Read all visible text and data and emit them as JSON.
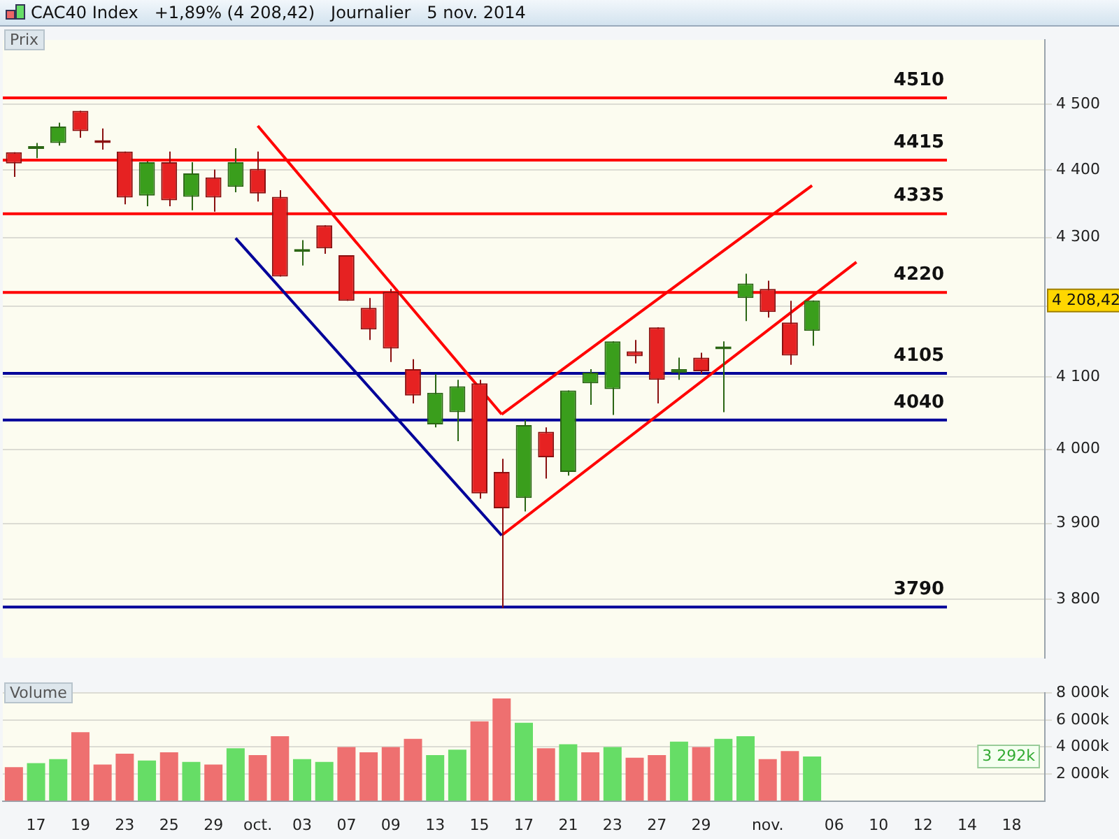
{
  "chart_data": [
    {
      "type": "candlestick",
      "title": "CAC40 Index   +1,89% (4 208,42)   Journalier   5 nov. 2014",
      "ylabel": "Prix",
      "log": true,
      "grid": "y",
      "tick_labels": "y",
      "categories": [
        null,
        null,
        null,
        null,
        null,
        null,
        null,
        null,
        null,
        null,
        null,
        null,
        null,
        null,
        null,
        null,
        null,
        null,
        null,
        null,
        null,
        null,
        null,
        null,
        null,
        null,
        null,
        null,
        null,
        null,
        null,
        null,
        null,
        null,
        null,
        null,
        null,
        null,
        null,
        null,
        null,
        null,
        null,
        null,
        null,
        null,
        null
      ],
      "ohlc": [
        [
          4427,
          4427,
          4390,
          4410
        ],
        [
          4432,
          4441,
          4418,
          4434
        ],
        [
          4441,
          4472,
          4437,
          4466
        ],
        [
          4490,
          4490,
          4449,
          4459
        ],
        [
          4445,
          4463,
          4431,
          4441
        ],
        [
          4428,
          4428,
          4349,
          4359
        ],
        [
          4362,
          4413,
          4346,
          4412
        ],
        [
          4412,
          4428,
          4346,
          4355
        ],
        [
          4360,
          4412,
          4340,
          4395
        ],
        [
          4389,
          4401,
          4338,
          4359
        ],
        [
          4375,
          4433,
          4367,
          4412
        ],
        [
          4402,
          4428,
          4353,
          4365
        ],
        [
          4360,
          4370,
          4243,
          4243
        ],
        [
          4279,
          4296,
          4259,
          4281
        ],
        [
          4318,
          4318,
          4276,
          4284
        ],
        [
          4274,
          4274,
          4208,
          4208
        ],
        [
          4198,
          4212,
          4152,
          4167
        ],
        [
          4221,
          4225,
          4121,
          4140
        ],
        [
          4111,
          4125,
          4063,
          4074
        ],
        [
          4034,
          4104,
          4030,
          4078
        ],
        [
          4051,
          4096,
          4011,
          4087
        ],
        [
          4091,
          4096,
          3933,
          3940
        ],
        [
          3969,
          3987,
          3789,
          3920
        ],
        [
          3934,
          4040,
          3916,
          4033
        ],
        [
          4024,
          4030,
          3960,
          3989
        ],
        [
          3969,
          4081,
          3964,
          4081
        ],
        [
          4091,
          4111,
          4061,
          4106
        ],
        [
          4083,
          4150,
          4047,
          4150
        ],
        [
          4136,
          4152,
          4119,
          4129
        ],
        [
          4170,
          4170,
          4063,
          4096
        ],
        [
          4106,
          4127,
          4096,
          4111
        ],
        [
          4127,
          4134,
          4104,
          4108
        ],
        [
          4139,
          4150,
          4051,
          4141
        ],
        [
          4212,
          4247,
          4179,
          4233
        ],
        [
          4225,
          4237,
          4184,
          4192
        ],
        [
          4177,
          4208,
          4117,
          4130
        ],
        [
          4165,
          4208.42,
          4144,
          4208.42
        ],
        null,
        null,
        null,
        null,
        null,
        null,
        null,
        null,
        null,
        null
      ],
      "series": [
        {
          "type": "line",
          "color": "#000099",
          "values": [
            null,
            null,
            null,
            null,
            null,
            null,
            null,
            null,
            null,
            null,
            4299,
            null,
            null,
            null,
            null,
            null,
            null,
            null,
            null,
            null,
            null,
            null,
            3884,
            null,
            null,
            null,
            null,
            null,
            null,
            null,
            null,
            null,
            null,
            null,
            null,
            null,
            null,
            null,
            null,
            null,
            null,
            null,
            null,
            null,
            null,
            null,
            null
          ]
        },
        {
          "type": "line",
          "color": "#ff0000",
          "values": [
            null,
            null,
            null,
            null,
            null,
            null,
            null,
            null,
            null,
            null,
            null,
            4467,
            null,
            null,
            null,
            null,
            null,
            null,
            null,
            null,
            null,
            null,
            4048,
            null,
            null,
            null,
            null,
            null,
            null,
            null,
            null,
            null,
            null,
            null,
            null,
            null,
            null,
            null,
            null,
            null,
            null,
            null,
            null,
            null,
            null,
            null,
            null
          ]
        },
        {
          "type": "line",
          "color": "#ff0000",
          "values": [
            null,
            null,
            null,
            null,
            null,
            null,
            null,
            null,
            null,
            null,
            null,
            null,
            null,
            null,
            null,
            null,
            null,
            null,
            null,
            null,
            null,
            null,
            4048,
            null,
            null,
            null,
            null,
            null,
            null,
            null,
            null,
            null,
            null,
            null,
            null,
            null,
            4377,
            null,
            null,
            null,
            null,
            null,
            null,
            null,
            null,
            null,
            null
          ]
        },
        {
          "type": "line",
          "color": "#ff0000",
          "values": [
            null,
            null,
            null,
            null,
            null,
            null,
            null,
            null,
            null,
            null,
            null,
            null,
            null,
            null,
            null,
            null,
            null,
            null,
            null,
            null,
            null,
            null,
            3884,
            null,
            null,
            null,
            null,
            null,
            null,
            null,
            null,
            null,
            null,
            null,
            null,
            null,
            null,
            null,
            4264,
            null,
            null,
            null,
            null,
            null,
            null,
            null,
            null
          ]
        }
      ],
      "ylim": [
        3725,
        4600
      ],
      "yticks": [
        {
          "value": 3800,
          "label": "3 800"
        },
        {
          "value": 3900,
          "label": "3 900"
        },
        {
          "value": 4000,
          "label": "4 000"
        },
        {
          "value": 4100,
          "label": "4 100"
        },
        {
          "value": 4200,
          "label": null
        },
        {
          "value": 4300,
          "label": "4 300"
        },
        {
          "value": 4400,
          "label": "4 400"
        },
        {
          "value": 4500,
          "label": "4 500"
        }
      ],
      "ref_lines": [
        {
          "axis": "y",
          "value": 4510,
          "label": "4510",
          "color": "#ff0000"
        },
        {
          "axis": "y",
          "value": 4415,
          "label": "4415",
          "color": "#ff0000"
        },
        {
          "axis": "y",
          "value": 4335,
          "label": "4335",
          "color": "#ff0000"
        },
        {
          "axis": "y",
          "value": 4220,
          "label": "4220",
          "color": "#ff0000"
        },
        {
          "axis": "y",
          "value": 4105,
          "label": "4105",
          "color": "#000099"
        },
        {
          "axis": "y",
          "value": 4040,
          "label": "4040",
          "color": "#000099"
        },
        {
          "axis": "y",
          "value": 3790,
          "label": "3790",
          "color": "#000099"
        }
      ],
      "annotations": [
        "4 208,42"
      ]
    },
    {
      "type": "bar",
      "ylabel": "Volume",
      "grid": "y",
      "categories": [
        null,
        "17",
        null,
        "19",
        null,
        "23",
        null,
        "25",
        null,
        "29",
        null,
        "oct.",
        null,
        "03",
        null,
        "07",
        null,
        "09",
        null,
        "13",
        null,
        "15",
        null,
        "17",
        null,
        "21",
        null,
        "23",
        null,
        "27",
        null,
        "29",
        null,
        null,
        "nov.",
        null,
        null,
        "06",
        null,
        "10",
        null,
        "12",
        null,
        "14",
        null,
        "18",
        null
      ],
      "values": [
        2500,
        2800,
        3100,
        5100,
        2700,
        3500,
        3000,
        3600,
        2900,
        2700,
        3900,
        3400,
        4800,
        3100,
        2900,
        4000,
        3600,
        4000,
        4600,
        3400,
        3800,
        5900,
        7600,
        5800,
        3900,
        4200,
        3600,
        4000,
        3200,
        3400,
        4400,
        4000,
        4600,
        4800,
        3100,
        3700,
        3292,
        null,
        null,
        null,
        null,
        null,
        null,
        null,
        null,
        null,
        null
      ],
      "colors": [
        "#ee7070",
        "#66dd66",
        "#66dd66",
        "#ee7070",
        "#ee7070",
        "#ee7070",
        "#66dd66",
        "#ee7070",
        "#66dd66",
        "#ee7070",
        "#66dd66",
        "#ee7070",
        "#ee7070",
        "#66dd66",
        "#66dd66",
        "#ee7070",
        "#ee7070",
        "#ee7070",
        "#ee7070",
        "#66dd66",
        "#66dd66",
        "#ee7070",
        "#ee7070",
        "#66dd66",
        "#ee7070",
        "#66dd66",
        "#ee7070",
        "#66dd66",
        "#ee7070",
        "#ee7070",
        "#66dd66",
        "#ee7070",
        "#66dd66",
        "#66dd66",
        "#ee7070",
        "#ee7070",
        "#66dd66",
        null,
        null,
        null,
        null,
        null,
        null,
        null,
        null,
        null,
        null
      ],
      "ylim": [
        0,
        8000
      ],
      "yticks": [
        {
          "value": 2000,
          "label": "2 000k"
        },
        {
          "value": 4000,
          "label": "4 000k"
        },
        {
          "value": 6000,
          "label": "6 000k"
        },
        {
          "value": 8000,
          "label": "8 000k"
        }
      ],
      "annotations": [
        "3 292k"
      ]
    }
  ]
}
